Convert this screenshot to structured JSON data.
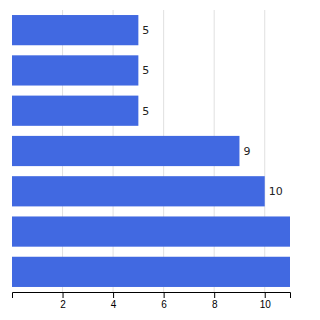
{
  "chart_data": {
    "type": "bar",
    "orientation": "horizontal",
    "categories": [
      null,
      null,
      null,
      null,
      null,
      null,
      null
    ],
    "values": [
      5,
      5,
      5,
      9,
      10,
      11,
      11
    ],
    "value_labels": [
      "5",
      "5",
      "5",
      "9",
      "10",
      null,
      null
    ],
    "data_labels": true,
    "color": "#4169E1",
    "xlim": [
      0,
      11
    ],
    "xticks": [
      2,
      4,
      6,
      8,
      10
    ],
    "grid": true,
    "tick_labels": "x"
  }
}
